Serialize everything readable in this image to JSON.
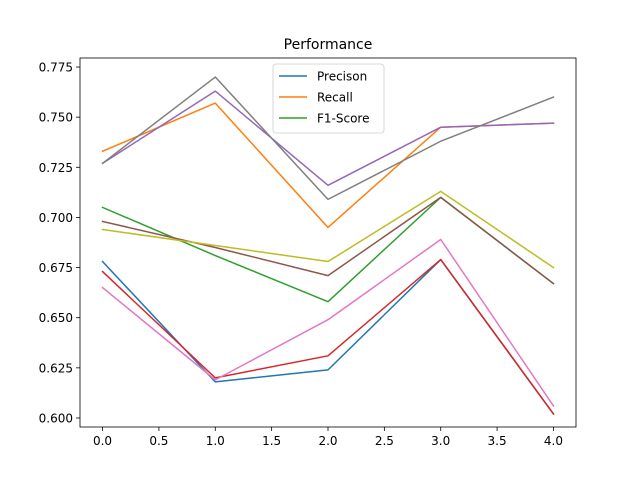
{
  "chart_data": {
    "type": "line",
    "title": "Performance",
    "xlabel": "",
    "ylabel": "",
    "xlim": [
      -0.2,
      4.2
    ],
    "ylim": [
      0.5955,
      0.7795
    ],
    "x": [
      0,
      1,
      2,
      3,
      4
    ],
    "xticks": [
      "0.0",
      "0.5",
      "1.0",
      "1.5",
      "2.0",
      "2.5",
      "3.0",
      "3.5",
      "4.0"
    ],
    "yticks": [
      "0.600",
      "0.625",
      "0.650",
      "0.675",
      "0.700",
      "0.725",
      "0.750",
      "0.775"
    ],
    "grid": false,
    "legend": "upper-center",
    "series": [
      {
        "name": "Precison",
        "color": "#1f77b4",
        "values": [
          0.678,
          0.618,
          0.624,
          0.679,
          0.602
        ]
      },
      {
        "name": "Recall",
        "color": "#ff7f0e",
        "values": [
          0.733,
          0.757,
          0.695,
          0.745,
          0.747
        ]
      },
      {
        "name": "F1-Score",
        "color": "#2ca02c",
        "values": [
          0.705,
          0.681,
          0.658,
          0.71,
          0.667
        ]
      },
      {
        "color": "#d62728",
        "values": [
          0.673,
          0.62,
          0.631,
          0.679,
          0.602
        ]
      },
      {
        "color": "#9467bd",
        "values": [
          0.727,
          0.763,
          0.716,
          0.745,
          0.747
        ]
      },
      {
        "color": "#8c564b",
        "values": [
          0.698,
          0.685,
          0.671,
          0.71,
          0.667
        ]
      },
      {
        "color": "#e377c2",
        "values": [
          0.665,
          0.619,
          0.649,
          0.689,
          0.606
        ]
      },
      {
        "color": "#7f7f7f",
        "values": [
          0.727,
          0.77,
          0.709,
          0.738,
          0.76
        ]
      },
      {
        "color": "#bcbd22",
        "values": [
          0.694,
          0.686,
          0.678,
          0.713,
          0.675
        ]
      }
    ]
  }
}
